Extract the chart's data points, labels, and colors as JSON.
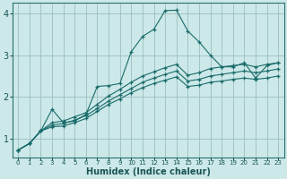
{
  "xlabel": "Humidex (Indice chaleur)",
  "xlim": [
    -0.5,
    23.5
  ],
  "ylim": [
    0.55,
    4.25
  ],
  "bg_color": "#cce8e8",
  "grid_color": "#9bbfbf",
  "line_color": "#1a6b6b",
  "xticks": [
    0,
    1,
    2,
    3,
    4,
    5,
    6,
    7,
    8,
    9,
    10,
    11,
    12,
    13,
    14,
    15,
    16,
    17,
    18,
    19,
    20,
    21,
    22,
    23
  ],
  "yticks": [
    1,
    2,
    3,
    4
  ],
  "series1_x": [
    0,
    1,
    2,
    3,
    4,
    5,
    6,
    7,
    8,
    9,
    10,
    11,
    12,
    13,
    14,
    15,
    16,
    17,
    18,
    19,
    20,
    21,
    22,
    23
  ],
  "series1_y": [
    0.72,
    0.88,
    1.18,
    1.7,
    1.38,
    1.42,
    1.58,
    2.25,
    2.27,
    2.32,
    3.08,
    3.45,
    3.62,
    4.07,
    4.08,
    3.58,
    3.32,
    3.0,
    2.72,
    2.72,
    2.82,
    2.45,
    2.75,
    2.82
  ],
  "series2_x": [
    0,
    1,
    2,
    3,
    4,
    5,
    6,
    7,
    8,
    9,
    10,
    11,
    12,
    13,
    14,
    15,
    16,
    17,
    18,
    19,
    20,
    21,
    22,
    23
  ],
  "series2_y": [
    0.72,
    0.88,
    1.18,
    1.38,
    1.42,
    1.52,
    1.62,
    1.82,
    2.02,
    2.18,
    2.35,
    2.5,
    2.6,
    2.7,
    2.78,
    2.52,
    2.58,
    2.68,
    2.72,
    2.75,
    2.78,
    2.72,
    2.78,
    2.82
  ],
  "series3_x": [
    0,
    1,
    2,
    3,
    4,
    5,
    6,
    7,
    8,
    9,
    10,
    11,
    12,
    13,
    14,
    15,
    16,
    17,
    18,
    19,
    20,
    21,
    22,
    23
  ],
  "series3_y": [
    0.72,
    0.88,
    1.18,
    1.32,
    1.36,
    1.44,
    1.55,
    1.72,
    1.9,
    2.05,
    2.2,
    2.35,
    2.45,
    2.54,
    2.62,
    2.38,
    2.42,
    2.5,
    2.54,
    2.58,
    2.62,
    2.58,
    2.62,
    2.67
  ],
  "series4_x": [
    0,
    1,
    2,
    3,
    4,
    5,
    6,
    7,
    8,
    9,
    10,
    11,
    12,
    13,
    14,
    15,
    16,
    17,
    18,
    19,
    20,
    21,
    22,
    23
  ],
  "series4_y": [
    0.72,
    0.88,
    1.18,
    1.28,
    1.3,
    1.38,
    1.48,
    1.65,
    1.82,
    1.95,
    2.1,
    2.22,
    2.32,
    2.4,
    2.48,
    2.25,
    2.28,
    2.35,
    2.38,
    2.42,
    2.45,
    2.42,
    2.45,
    2.5
  ]
}
